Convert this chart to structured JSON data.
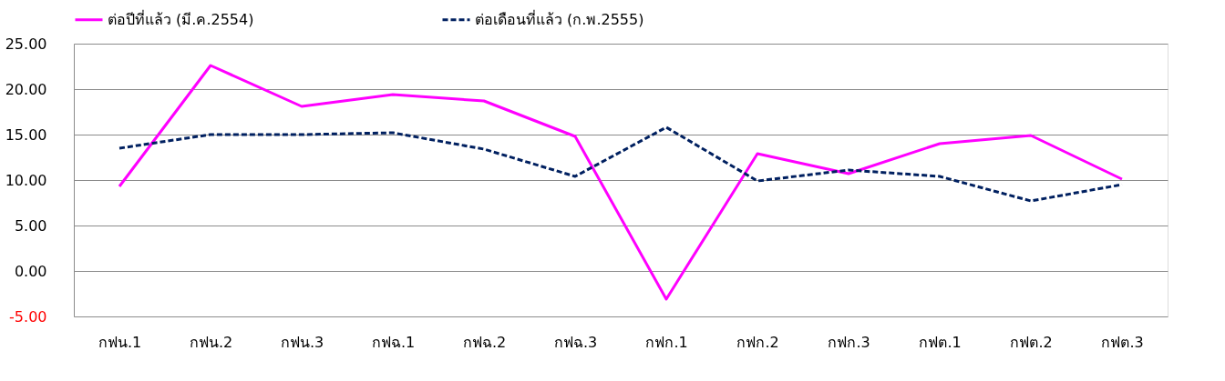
{
  "chart_data": {
    "type": "line",
    "categories": [
      "กฟน.1",
      "กฟน.2",
      "กฟน.3",
      "กฟฉ.1",
      "กฟฉ.2",
      "กฟฉ.3",
      "กฟก.1",
      "กฟก.2",
      "กฟก.3",
      "กฟต.1",
      "กฟต.2",
      "กฟต.3"
    ],
    "series": [
      {
        "name": "ต่อปีที่แล้ว (มี.ค.2554)",
        "color": "#ff00ff",
        "line_style": "solid",
        "values": [
          9.3,
          22.6,
          18.1,
          19.4,
          18.7,
          14.8,
          -3.1,
          12.9,
          10.7,
          14.0,
          14.9,
          10.1
        ]
      },
      {
        "name": "ต่อเดือนที่แล้ว (ก.พ.2555)",
        "color": "#002060",
        "line_style": "dashed",
        "values": [
          13.5,
          15.0,
          15.0,
          15.2,
          13.4,
          10.4,
          15.8,
          9.9,
          11.1,
          10.4,
          7.7,
          9.5
        ]
      }
    ],
    "ylim": [
      -5,
      25
    ],
    "yticks": [
      {
        "value": -5,
        "label": "-5.00"
      },
      {
        "value": 0,
        "label": "0.00"
      },
      {
        "value": 5,
        "label": "5.00"
      },
      {
        "value": 10,
        "label": "10.00"
      },
      {
        "value": 15,
        "label": "15.00"
      },
      {
        "value": 20,
        "label": "20.00"
      },
      {
        "value": 25,
        "label": "25.00"
      }
    ],
    "grid": "y",
    "legend": "top",
    "marker": "none"
  }
}
